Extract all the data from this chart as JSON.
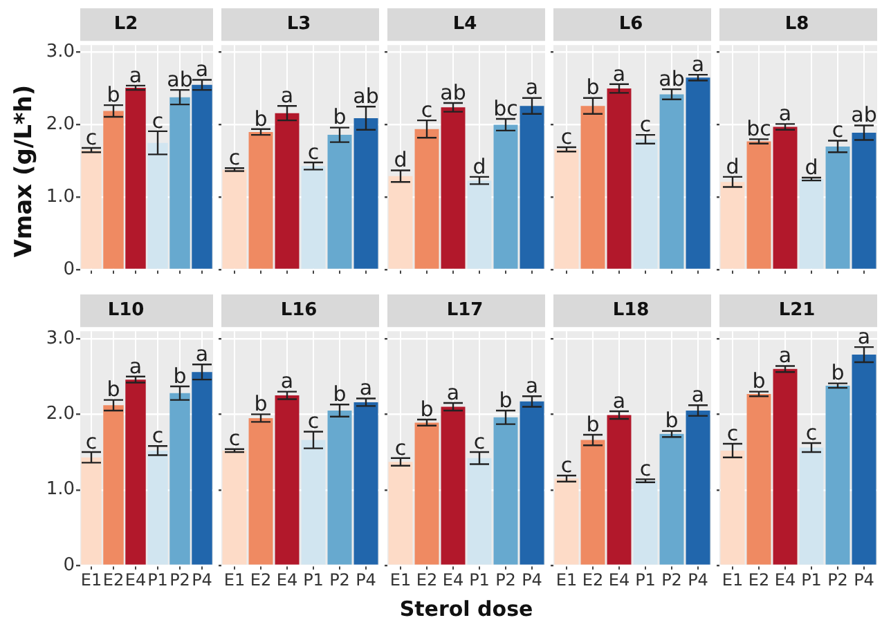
{
  "chart_data": [
    {
      "type": "bar",
      "title": "L2",
      "ylabel": "Vmax (g/L*h)",
      "categories": [
        "E1",
        "E2",
        "E4",
        "P1",
        "P2",
        "P4"
      ],
      "values": [
        1.65,
        2.19,
        2.51,
        1.75,
        2.38,
        2.55
      ],
      "errors": [
        0.03,
        0.08,
        0.03,
        0.16,
        0.1,
        0.07
      ],
      "colors": [
        "#fddbc7",
        "#ef8a62",
        "#b2182b",
        "#d1e5f0",
        "#67a9cf",
        "#2166ac"
      ],
      "annotations": [
        {
          "text": "c",
          "x": "E1",
          "y": 1.68
        },
        {
          "text": "b",
          "x": "E2",
          "y": 2.27
        },
        {
          "text": "a",
          "x": "E4",
          "y": 2.54
        },
        {
          "text": "c",
          "x": "P1",
          "y": 1.91
        },
        {
          "text": "ab",
          "x": "P2",
          "y": 2.48
        },
        {
          "text": "a",
          "x": "P4",
          "y": 2.62
        }
      ],
      "ylim": [
        0,
        3.1
      ],
      "yticks": [
        0,
        {
          "value": 1,
          "label": "1.0"
        },
        {
          "value": 2,
          "label": "2.0"
        },
        {
          "value": 3,
          "label": "3.0"
        }
      ],
      "grid": true,
      "tick_labels": "y"
    },
    {
      "type": "bar",
      "title": "L3",
      "categories": [
        "E1",
        "E2",
        "E4",
        "P1",
        "P2",
        "P4"
      ],
      "values": [
        1.38,
        1.9,
        2.16,
        1.43,
        1.86,
        2.09
      ],
      "errors": [
        0.02,
        0.04,
        0.1,
        0.05,
        0.1,
        0.16
      ],
      "colors": [
        "#fddbc7",
        "#ef8a62",
        "#b2182b",
        "#d1e5f0",
        "#67a9cf",
        "#2166ac"
      ],
      "annotations": [
        {
          "text": "c",
          "x": "E1",
          "y": 1.4
        },
        {
          "text": "b",
          "x": "E2",
          "y": 1.94
        },
        {
          "text": "a",
          "x": "E4",
          "y": 2.26
        },
        {
          "text": "c",
          "x": "P1",
          "y": 1.48
        },
        {
          "text": "b",
          "x": "P2",
          "y": 1.96
        },
        {
          "text": "ab",
          "x": "P4",
          "y": 2.25
        }
      ],
      "ylim": [
        0,
        3.1
      ],
      "yticks": [
        0,
        1,
        2,
        3
      ],
      "grid": true,
      "tick_labels": false
    },
    {
      "type": "bar",
      "title": "L4",
      "categories": [
        "E1",
        "E2",
        "E4",
        "P1",
        "P2",
        "P4"
      ],
      "values": [
        1.29,
        1.94,
        2.24,
        1.23,
        2.0,
        2.26
      ],
      "errors": [
        0.08,
        0.12,
        0.06,
        0.05,
        0.08,
        0.11
      ],
      "colors": [
        "#fddbc7",
        "#ef8a62",
        "#b2182b",
        "#d1e5f0",
        "#67a9cf",
        "#2166ac"
      ],
      "annotations": [
        {
          "text": "d",
          "x": "E1",
          "y": 1.37
        },
        {
          "text": "c",
          "x": "E2",
          "y": 2.06
        },
        {
          "text": "ab",
          "x": "E4",
          "y": 2.3
        },
        {
          "text": "d",
          "x": "P1",
          "y": 1.28
        },
        {
          "text": "bc",
          "x": "P2",
          "y": 2.08
        },
        {
          "text": "a",
          "x": "P4",
          "y": 2.37
        }
      ],
      "ylim": [
        0,
        3.1
      ],
      "yticks": [
        0,
        1,
        2,
        3
      ],
      "grid": true,
      "tick_labels": false
    },
    {
      "type": "bar",
      "title": "L6",
      "categories": [
        "E1",
        "E2",
        "E4",
        "P1",
        "P2",
        "P4"
      ],
      "values": [
        1.66,
        2.26,
        2.5,
        1.8,
        2.42,
        2.65
      ],
      "errors": [
        0.03,
        0.11,
        0.06,
        0.06,
        0.07,
        0.04
      ],
      "colors": [
        "#fddbc7",
        "#ef8a62",
        "#b2182b",
        "#d1e5f0",
        "#67a9cf",
        "#2166ac"
      ],
      "annotations": [
        {
          "text": "c",
          "x": "E1",
          "y": 1.69
        },
        {
          "text": "b",
          "x": "E2",
          "y": 2.37
        },
        {
          "text": "a",
          "x": "E4",
          "y": 2.56
        },
        {
          "text": "c",
          "x": "P1",
          "y": 1.86
        },
        {
          "text": "ab",
          "x": "P2",
          "y": 2.49
        },
        {
          "text": "a",
          "x": "P4",
          "y": 2.69
        }
      ],
      "ylim": [
        0,
        3.1
      ],
      "yticks": [
        0,
        1,
        2,
        3
      ],
      "grid": true,
      "tick_labels": false
    },
    {
      "type": "bar",
      "title": "L8",
      "categories": [
        "E1",
        "E2",
        "E4",
        "P1",
        "P2",
        "P4"
      ],
      "values": [
        1.21,
        1.77,
        1.97,
        1.25,
        1.7,
        1.89
      ],
      "errors": [
        0.07,
        0.03,
        0.04,
        0.02,
        0.08,
        0.1
      ],
      "colors": [
        "#fddbc7",
        "#ef8a62",
        "#b2182b",
        "#d1e5f0",
        "#67a9cf",
        "#2166ac"
      ],
      "annotations": [
        {
          "text": "d",
          "x": "E1",
          "y": 1.28
        },
        {
          "text": "bc",
          "x": "E2",
          "y": 1.8
        },
        {
          "text": "a",
          "x": "E4",
          "y": 2.01
        },
        {
          "text": "d",
          "x": "P1",
          "y": 1.27
        },
        {
          "text": "c",
          "x": "P2",
          "y": 1.78
        },
        {
          "text": "ab",
          "x": "P4",
          "y": 1.99
        }
      ],
      "ylim": [
        0,
        3.1
      ],
      "yticks": [
        0,
        1,
        2,
        3
      ],
      "grid": true,
      "tick_labels": false
    },
    {
      "type": "bar",
      "title": "L10",
      "categories": [
        "E1",
        "E2",
        "E4",
        "P1",
        "P2",
        "P4"
      ],
      "values": [
        1.43,
        2.12,
        2.46,
        1.52,
        2.28,
        2.56
      ],
      "errors": [
        0.07,
        0.07,
        0.04,
        0.06,
        0.09,
        0.1
      ],
      "colors": [
        "#fddbc7",
        "#ef8a62",
        "#b2182b",
        "#d1e5f0",
        "#67a9cf",
        "#2166ac"
      ],
      "annotations": [
        {
          "text": "c",
          "x": "E1",
          "y": 1.5
        },
        {
          "text": "b",
          "x": "E2",
          "y": 2.19
        },
        {
          "text": "a",
          "x": "E4",
          "y": 2.5
        },
        {
          "text": "c",
          "x": "P1",
          "y": 1.58
        },
        {
          "text": "b",
          "x": "P2",
          "y": 2.37
        },
        {
          "text": "a",
          "x": "P4",
          "y": 2.66
        }
      ],
      "ylim": [
        0,
        3.1
      ],
      "yticks": [
        0,
        {
          "value": 1,
          "label": "1.0"
        },
        {
          "value": 2,
          "label": "2.0"
        },
        {
          "value": 3,
          "label": "3.0"
        }
      ],
      "grid": true
    },
    {
      "type": "bar",
      "title": "L16",
      "categories": [
        "E1",
        "E2",
        "E4",
        "P1",
        "P2",
        "P4"
      ],
      "values": [
        1.52,
        1.95,
        2.25,
        1.66,
        2.05,
        2.16
      ],
      "errors": [
        0.02,
        0.05,
        0.05,
        0.11,
        0.08,
        0.05
      ],
      "colors": [
        "#fddbc7",
        "#ef8a62",
        "#b2182b",
        "#d1e5f0",
        "#67a9cf",
        "#2166ac"
      ],
      "annotations": [
        {
          "text": "c",
          "x": "E1",
          "y": 1.54
        },
        {
          "text": "b",
          "x": "E2",
          "y": 2.0
        },
        {
          "text": "a",
          "x": "E4",
          "y": 2.3
        },
        {
          "text": "c",
          "x": "P1",
          "y": 1.77
        },
        {
          "text": "b",
          "x": "P2",
          "y": 2.13
        },
        {
          "text": "a",
          "x": "P4",
          "y": 2.21
        }
      ],
      "ylim": [
        0,
        3.1
      ],
      "yticks": [
        0,
        1,
        2,
        3
      ],
      "grid": true,
      "tick_labels": "x"
    },
    {
      "type": "bar",
      "title": "L17",
      "xlabel": "Sterol dose",
      "categories": [
        "E1",
        "E2",
        "E4",
        "P1",
        "P2",
        "P4"
      ],
      "values": [
        1.37,
        1.89,
        2.1,
        1.42,
        1.96,
        2.17
      ],
      "errors": [
        0.05,
        0.04,
        0.05,
        0.08,
        0.09,
        0.07
      ],
      "colors": [
        "#fddbc7",
        "#ef8a62",
        "#b2182b",
        "#d1e5f0",
        "#67a9cf",
        "#2166ac"
      ],
      "annotations": [
        {
          "text": "c",
          "x": "E1",
          "y": 1.42
        },
        {
          "text": "b",
          "x": "E2",
          "y": 1.93
        },
        {
          "text": "a",
          "x": "E4",
          "y": 2.15
        },
        {
          "text": "c",
          "x": "P1",
          "y": 1.5
        },
        {
          "text": "b",
          "x": "P2",
          "y": 2.05
        },
        {
          "text": "a",
          "x": "P4",
          "y": 2.24
        }
      ],
      "ylim": [
        0,
        3.1
      ],
      "yticks": [
        0,
        1,
        2,
        3
      ],
      "grid": true,
      "tick_labels": "x"
    },
    {
      "type": "bar",
      "title": "L18",
      "categories": [
        "E1",
        "E2",
        "E4",
        "P1",
        "P2",
        "P4"
      ],
      "values": [
        1.15,
        1.66,
        1.99,
        1.12,
        1.74,
        2.05
      ],
      "errors": [
        0.04,
        0.07,
        0.05,
        0.02,
        0.04,
        0.07
      ],
      "colors": [
        "#fddbc7",
        "#ef8a62",
        "#b2182b",
        "#d1e5f0",
        "#67a9cf",
        "#2166ac"
      ],
      "annotations": [
        {
          "text": "c",
          "x": "E1",
          "y": 1.19
        },
        {
          "text": "b",
          "x": "E2",
          "y": 1.73
        },
        {
          "text": "a",
          "x": "E4",
          "y": 2.04
        },
        {
          "text": "c",
          "x": "P1",
          "y": 1.14
        },
        {
          "text": "b",
          "x": "P2",
          "y": 1.78
        },
        {
          "text": "a",
          "x": "P4",
          "y": 2.12
        }
      ],
      "ylim": [
        0,
        3.1
      ],
      "yticks": [
        0,
        1,
        2,
        3
      ],
      "grid": true,
      "tick_labels": "x"
    },
    {
      "type": "bar",
      "title": "L21",
      "categories": [
        "E1",
        "E2",
        "E4",
        "P1",
        "P2",
        "P4"
      ],
      "values": [
        1.52,
        2.27,
        2.6,
        1.56,
        2.38,
        2.79
      ],
      "errors": [
        0.09,
        0.03,
        0.04,
        0.06,
        0.03,
        0.1
      ],
      "colors": [
        "#fddbc7",
        "#ef8a62",
        "#b2182b",
        "#d1e5f0",
        "#67a9cf",
        "#2166ac"
      ],
      "annotations": [
        {
          "text": "c",
          "x": "E1",
          "y": 1.61
        },
        {
          "text": "b",
          "x": "E2",
          "y": 2.3
        },
        {
          "text": "a",
          "x": "E4",
          "y": 2.64
        },
        {
          "text": "c",
          "x": "P1",
          "y": 1.62
        },
        {
          "text": "b",
          "x": "P2",
          "y": 2.41
        },
        {
          "text": "a",
          "x": "P4",
          "y": 2.89
        }
      ],
      "ylim": [
        0,
        3.1
      ],
      "yticks": [
        0,
        1,
        2,
        3
      ],
      "grid": true,
      "tick_labels": "x"
    }
  ]
}
